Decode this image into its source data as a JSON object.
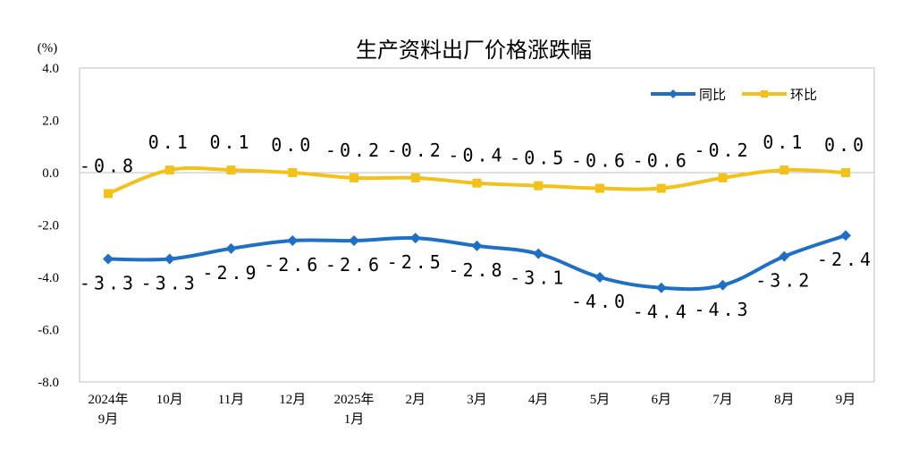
{
  "chart_data": {
    "type": "line",
    "title": "生产资料出厂价格涨跌幅",
    "unit": "(%)",
    "ylim": [
      -8.0,
      4.0
    ],
    "yticks": [
      "4.0",
      "2.0",
      "0.0",
      "-2.0",
      "-4.0",
      "-6.0",
      "-8.0"
    ],
    "ytick_values": [
      4,
      2,
      0,
      -2,
      -4,
      -6,
      -8
    ],
    "categories": [
      [
        "2024年",
        "9月"
      ],
      [
        "10月"
      ],
      [
        "11月"
      ],
      [
        "12月"
      ],
      [
        "2025年",
        "1月"
      ],
      [
        "2月"
      ],
      [
        "3月"
      ],
      [
        "4月"
      ],
      [
        "5月"
      ],
      [
        "6月"
      ],
      [
        "7月"
      ],
      [
        "8月"
      ],
      [
        "9月"
      ]
    ],
    "legend_position": "top-right",
    "grid": false,
    "series": [
      {
        "name": "同比",
        "color": "#1f6fc5",
        "marker": "diamond",
        "values": [
          -3.3,
          -3.3,
          -2.9,
          -2.6,
          -2.6,
          -2.5,
          -2.8,
          -3.1,
          -4.0,
          -4.4,
          -4.3,
          -3.2,
          -2.4
        ],
        "labels": [
          "-3.3",
          "-3.3",
          "-2.9",
          "-2.6",
          "-2.6",
          "-2.5",
          "-2.8",
          "-3.1",
          "-4.0",
          "-4.4",
          "-4.3",
          "-3.2",
          "-2.4"
        ]
      },
      {
        "name": "环比",
        "color": "#f2c21b",
        "marker": "square",
        "values": [
          -0.8,
          0.1,
          0.1,
          0.0,
          -0.2,
          -0.2,
          -0.4,
          -0.5,
          -0.6,
          -0.6,
          -0.2,
          0.1,
          0.0
        ],
        "labels": [
          "-0.8",
          "0.1",
          "0.1",
          "0.0",
          "-0.2",
          "-0.2",
          "-0.4",
          "-0.5",
          "-0.6",
          "-0.6",
          "-0.2",
          "0.1",
          "0.0"
        ]
      }
    ]
  }
}
